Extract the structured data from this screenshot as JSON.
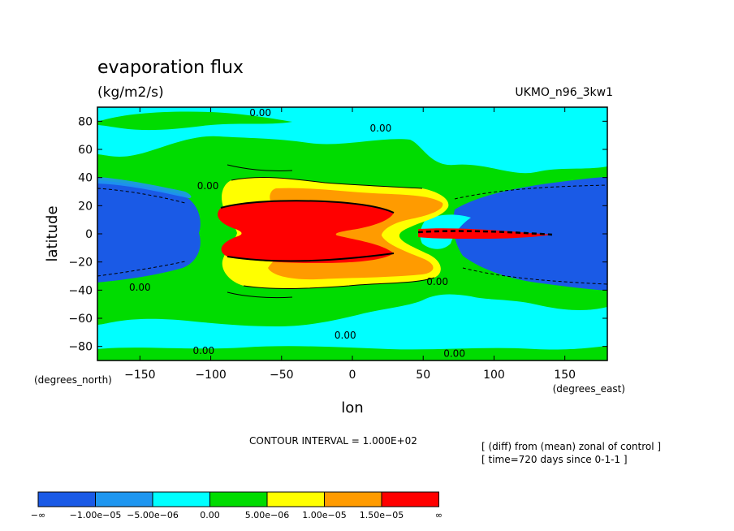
{
  "chart_data": {
    "type": "contour",
    "title": "evaporation flux",
    "units": "(kg/m2/s)",
    "model": "UKMO_n96_3kw1",
    "xlabel": "lon",
    "ylabel": "latitude",
    "x_unit_note": "(degrees_east)",
    "y_unit_note": "(degrees_north)",
    "xlim": [
      -180,
      180
    ],
    "ylim": [
      -90,
      90
    ],
    "x_ticks": [
      -150,
      -100,
      -50,
      0,
      50,
      100,
      150
    ],
    "y_ticks": [
      -80,
      -60,
      -40,
      -20,
      0,
      20,
      40,
      60,
      80
    ],
    "contour_interval_text": "CONTOUR INTERVAL = 1.000E+02",
    "notes": [
      "[ (diff) from (mean) zonal of control ]",
      "[ time=720 days since 0-1-1 ]"
    ],
    "contour_labels": [
      {
        "text": "0.00",
        "x": -65,
        "y": 86
      },
      {
        "text": "0.00",
        "x": 20,
        "y": 75
      },
      {
        "text": "0.00",
        "x": -102,
        "y": 34
      },
      {
        "text": "0.00",
        "x": -150,
        "y": -38
      },
      {
        "text": "0.00",
        "x": 60,
        "y": -34
      },
      {
        "text": "0.00",
        "x": -5,
        "y": -72
      },
      {
        "text": "0.00",
        "x": -105,
        "y": -83
      },
      {
        "text": "0.00",
        "x": 72,
        "y": -85
      }
    ],
    "field_regions": [
      {
        "level": "lt_-1e-05",
        "shape": "west-dip",
        "x": [
          -180,
          -105
        ],
        "y": [
          -33,
          34
        ]
      },
      {
        "level": "lt_-1e-05",
        "shape": "east-band",
        "x": [
          70,
          180
        ],
        "y": [
          -40,
          34
        ]
      },
      {
        "level": "5e-06_1e-05",
        "x": [
          -90,
          70
        ],
        "y": [
          -42,
          40
        ]
      },
      {
        "level": "1e-05_1.5e-05",
        "x": [
          -55,
          68
        ],
        "y": [
          -37,
          35
        ]
      },
      {
        "level": "gt_1.5e-05",
        "x": [
          -90,
          45
        ],
        "y": [
          -20,
          18
        ]
      },
      {
        "level": "gt_1.5e-05",
        "x": [
          50,
          110
        ],
        "y": [
          -4,
          3
        ]
      }
    ],
    "legend": {
      "colors": [
        "#1a5ae6",
        "#1e96f0",
        "#00ffff",
        "#00dc00",
        "#ffff00",
        "#ff9b00",
        "#ff0000"
      ],
      "labels": [
        "-∞",
        "-1.00e-05",
        "-5.00e-06",
        "0.00",
        "5.00e-06",
        "1.00e-05",
        "1.50e-05",
        "∞"
      ],
      "level_labels": [
        "−∞",
        "−1.00e−05",
        "−5.00e−06",
        "0.00",
        "5.00e−06",
        "1.00e−05",
        "1.50e−05",
        "∞"
      ]
    }
  }
}
